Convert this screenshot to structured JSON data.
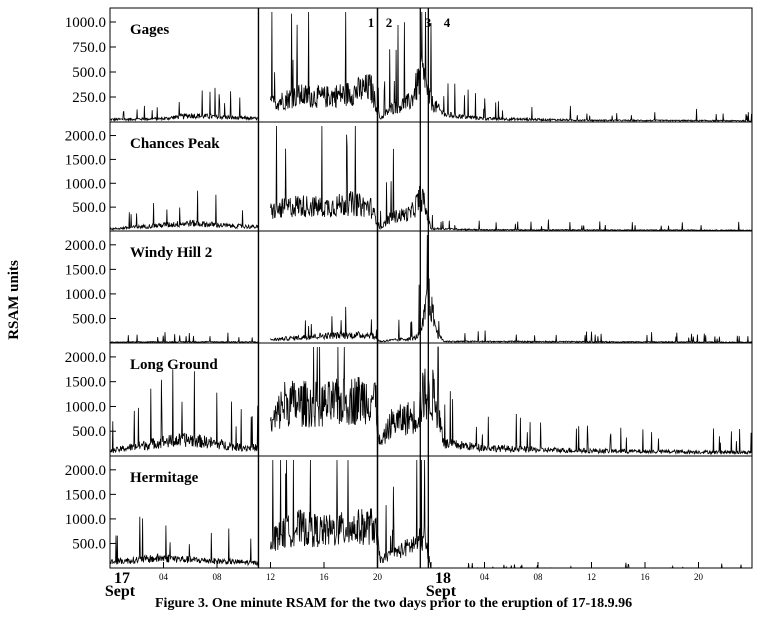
{
  "caption": "Figure 3. One minute RSAM for the two days prior to the eruption of 17-18.9.96",
  "ylabel": "RSAM units",
  "chart_data": {
    "type": "line",
    "x_range_hours": [
      0,
      48
    ],
    "x_tick_hours": [
      0,
      4,
      8,
      12,
      16,
      20,
      24,
      28,
      32,
      36,
      40,
      44
    ],
    "x_tick_labels": [
      "",
      "04",
      "08",
      "12",
      "16",
      "20",
      "",
      "04",
      "08",
      "12",
      "16",
      "20"
    ],
    "day_labels": [
      {
        "hour": 0,
        "top": "17",
        "bottom": "Sept"
      },
      {
        "hour": 24,
        "top": "18",
        "bottom": "Sept"
      }
    ],
    "event_markers": [
      {
        "label": "1",
        "hour": 20.0
      },
      {
        "label": "2",
        "hour": 20.0
      },
      {
        "label": "3",
        "hour": 23.2
      },
      {
        "label": "4",
        "hour": 23.8
      }
    ],
    "data_gap_start_hour": 11.1,
    "panels": [
      {
        "name": "Gages",
        "yticks": [
          250,
          500,
          750,
          1000
        ],
        "ytick_labels": [
          "250.0",
          "500.0",
          "750.0",
          "1000.0"
        ],
        "ylim": [
          0,
          1100
        ],
        "profile": [
          [
            0,
            30
          ],
          [
            4,
            40
          ],
          [
            6,
            80
          ],
          [
            9.5,
            50
          ],
          [
            11.2,
            40
          ],
          [
            12,
            220
          ],
          [
            14,
            320
          ],
          [
            16,
            300
          ],
          [
            18,
            350
          ],
          [
            19.5,
            420
          ],
          [
            20.2,
            40
          ],
          [
            21,
            160
          ],
          [
            22.5,
            250
          ],
          [
            23.3,
            600
          ],
          [
            24,
            240
          ],
          [
            25,
            90
          ],
          [
            28,
            40
          ],
          [
            36,
            20
          ],
          [
            48,
            15
          ]
        ]
      },
      {
        "name": "Chances Peak",
        "yticks": [
          500,
          1000,
          1500,
          2000
        ],
        "ytick_labels": [
          "500.0",
          "1000.0",
          "1500.0",
          "2000.0"
        ],
        "ylim": [
          0,
          2200
        ],
        "profile": [
          [
            0,
            50
          ],
          [
            4,
            150
          ],
          [
            6,
            200
          ],
          [
            9,
            130
          ],
          [
            11.2,
            100
          ],
          [
            12,
            500
          ],
          [
            14,
            650
          ],
          [
            16,
            600
          ],
          [
            18,
            700
          ],
          [
            19.5,
            600
          ],
          [
            20.2,
            70
          ],
          [
            21,
            350
          ],
          [
            22.5,
            450
          ],
          [
            23.3,
            900
          ],
          [
            24,
            60
          ],
          [
            28,
            30
          ],
          [
            48,
            20
          ]
        ]
      },
      {
        "name": "Windy Hill 2",
        "yticks": [
          500,
          1000,
          1500,
          2000
        ],
        "ytick_labels": [
          "500.0",
          "1000.0",
          "1500.0",
          "2000.0"
        ],
        "ylim": [
          0,
          2200
        ],
        "profile": [
          [
            0,
            20
          ],
          [
            6,
            30
          ],
          [
            11.2,
            25
          ],
          [
            12,
            80
          ],
          [
            16,
            180
          ],
          [
            19.5,
            200
          ],
          [
            20.2,
            40
          ],
          [
            22.8,
            120
          ],
          [
            23.3,
            300
          ],
          [
            23.8,
            1200
          ],
          [
            24.5,
            200
          ],
          [
            25,
            40
          ],
          [
            48,
            20
          ]
        ]
      },
      {
        "name": "Long Ground",
        "yticks": [
          500,
          1000,
          1500,
          2000
        ],
        "ytick_labels": [
          "500.0",
          "1000.0",
          "1500.0",
          "2000.0"
        ],
        "ylim": [
          0,
          2200
        ],
        "profile": [
          [
            0,
            120
          ],
          [
            4,
            350
          ],
          [
            6,
            400
          ],
          [
            9.5,
            220
          ],
          [
            11.2,
            200
          ],
          [
            12,
            700
          ],
          [
            13,
            1300
          ],
          [
            16,
            1250
          ],
          [
            19.8,
            1450
          ],
          [
            20.2,
            250
          ],
          [
            21,
            800
          ],
          [
            23,
            1000
          ],
          [
            23.5,
            1550
          ],
          [
            24.3,
            1450
          ],
          [
            25,
            300
          ],
          [
            28,
            200
          ],
          [
            32,
            150
          ],
          [
            40,
            110
          ],
          [
            48,
            90
          ]
        ]
      },
      {
        "name": "Hermitage",
        "yticks": [
          500,
          1000,
          1500,
          2000
        ],
        "ytick_labels": [
          "500.0",
          "1000.0",
          "1500.0",
          "2000.0"
        ],
        "ylim": [
          0,
          2200
        ],
        "profile": [
          [
            0,
            150
          ],
          [
            4,
            250
          ],
          [
            6,
            200
          ],
          [
            9.5,
            150
          ],
          [
            11.2,
            120
          ],
          [
            12,
            700
          ],
          [
            14,
            1000
          ],
          [
            16,
            900
          ],
          [
            19.8,
            1050
          ],
          [
            20.2,
            200
          ],
          [
            22.5,
            550
          ],
          [
            23.5,
            750
          ],
          [
            24,
            0
          ],
          [
            48,
            0
          ]
        ]
      }
    ]
  }
}
